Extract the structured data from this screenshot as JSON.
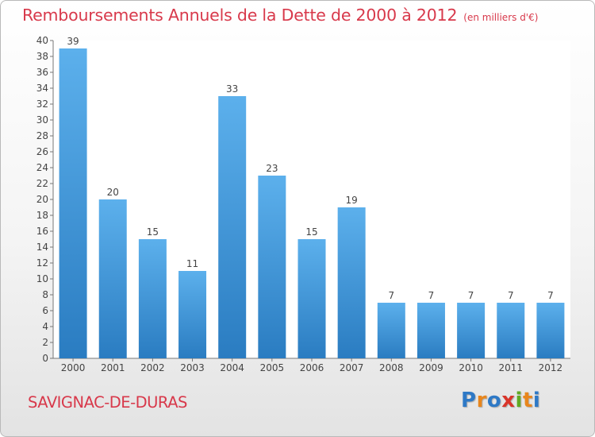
{
  "title": "Remboursements Annuels de la Dette de 2000 à 2012",
  "subtitle": "(en milliers d'€)",
  "commune": "SAVIGNAC-DE-DURAS",
  "logo": {
    "letters": [
      "P",
      "r",
      "o",
      "x",
      "i",
      "t",
      "i"
    ],
    "colors": [
      "#2e79c6",
      "#e8861d",
      "#2e79c6",
      "#d9352a",
      "#61a923",
      "#e8861d",
      "#2e79c6"
    ]
  },
  "chart_data": {
    "type": "bar",
    "title": "Remboursements Annuels de la Dette de 2000 à 2012",
    "subtitle": "(en milliers d'€)",
    "categories": [
      "2000",
      "2001",
      "2002",
      "2003",
      "2004",
      "2005",
      "2006",
      "2007",
      "2008",
      "2009",
      "2010",
      "2011",
      "2012"
    ],
    "values": [
      39,
      20,
      15,
      11,
      33,
      23,
      15,
      19,
      7,
      7,
      7,
      7,
      7
    ],
    "ylim": [
      0,
      40
    ],
    "yticks": [
      0,
      2,
      4,
      6,
      8,
      10,
      12,
      14,
      16,
      18,
      20,
      22,
      24,
      26,
      28,
      30,
      32,
      34,
      36,
      38,
      40
    ],
    "grid": false,
    "bar_color": "#3f97db"
  }
}
